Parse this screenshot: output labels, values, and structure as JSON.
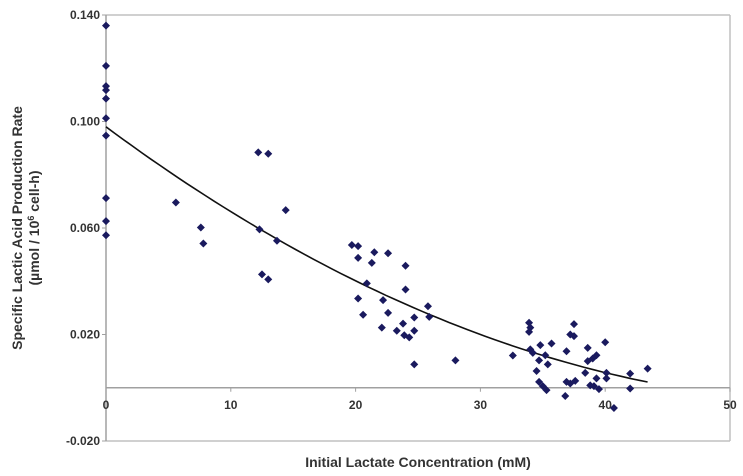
{
  "chart_data": {
    "type": "scatter",
    "title": "",
    "xlabel": "Initial Lactate Concentration (mM)",
    "ylabel_line1": "Specific Lactic Acid Production Rate",
    "ylabel_line2_pre": "(µmol / 10",
    "ylabel_line2_sup": "6",
    "ylabel_line2_post": " cell-h)",
    "xlim": [
      0,
      50
    ],
    "ylim": [
      -0.02,
      0.14
    ],
    "x_ticks": [
      0,
      10,
      20,
      30,
      40,
      50
    ],
    "x_tick_labels": [
      "0",
      "10",
      "20",
      "30",
      "40",
      "50"
    ],
    "y_ticks": [
      0.14,
      0.1,
      0.06,
      0.02,
      -0.02
    ],
    "y_tick_labels": [
      "0.140",
      "0.100",
      "0.060",
      "0.020",
      "-0.020"
    ],
    "grid": false,
    "marker_color": "#1a1a5e",
    "trendline": {
      "type": "polynomial",
      "coefficients": [
        0.098,
        -0.003476,
        2.92e-05
      ],
      "x_range": [
        0,
        43.4
      ],
      "color": "#111111"
    },
    "points": [
      [
        0,
        0.136
      ],
      [
        0,
        0.1209
      ],
      [
        0,
        0.1133
      ],
      [
        0,
        0.1118
      ],
      [
        0,
        0.1086
      ],
      [
        0,
        0.1012
      ],
      [
        0,
        0.0947
      ],
      [
        0,
        0.0712
      ],
      [
        0,
        0.0626
      ],
      [
        0,
        0.0573
      ],
      [
        5.6,
        0.0696
      ],
      [
        7.6,
        0.0602
      ],
      [
        7.8,
        0.0542
      ],
      [
        12.2,
        0.0884
      ],
      [
        13.0,
        0.0879
      ],
      [
        14.4,
        0.0667
      ],
      [
        12.3,
        0.0595
      ],
      [
        13.7,
        0.0552
      ],
      [
        12.5,
        0.0426
      ],
      [
        13.0,
        0.0407
      ],
      [
        19.7,
        0.0536
      ],
      [
        20.2,
        0.0532
      ],
      [
        20.2,
        0.0488
      ],
      [
        21.5,
        0.0509
      ],
      [
        22.6,
        0.0505
      ],
      [
        21.3,
        0.0469
      ],
      [
        24.0,
        0.0458
      ],
      [
        20.9,
        0.0392
      ],
      [
        24.0,
        0.0369
      ],
      [
        20.2,
        0.0335
      ],
      [
        22.2,
        0.0329
      ],
      [
        25.8,
        0.0306
      ],
      [
        20.6,
        0.0274
      ],
      [
        22.6,
        0.0281
      ],
      [
        24.7,
        0.0264
      ],
      [
        25.9,
        0.0266
      ],
      [
        23.8,
        0.0241
      ],
      [
        22.1,
        0.0226
      ],
      [
        23.3,
        0.0214
      ],
      [
        24.7,
        0.0214
      ],
      [
        23.9,
        0.0197
      ],
      [
        24.3,
        0.0189
      ],
      [
        24.7,
        0.0088
      ],
      [
        28.0,
        0.0103
      ],
      [
        32.6,
        0.0121
      ],
      [
        33.9,
        0.0244
      ],
      [
        34.0,
        0.0226
      ],
      [
        33.9,
        0.021
      ],
      [
        37.5,
        0.0239
      ],
      [
        37.2,
        0.02
      ],
      [
        37.5,
        0.0194
      ],
      [
        34.0,
        0.0144
      ],
      [
        34.8,
        0.016
      ],
      [
        34.2,
        0.0131
      ],
      [
        35.2,
        0.0122
      ],
      [
        34.7,
        0.0103
      ],
      [
        35.7,
        0.0166
      ],
      [
        35.4,
        0.0088
      ],
      [
        36.9,
        0.0137
      ],
      [
        38.6,
        0.015
      ],
      [
        39.3,
        0.0122
      ],
      [
        39.0,
        0.011
      ],
      [
        38.6,
        0.01
      ],
      [
        40.0,
        0.0171
      ],
      [
        34.5,
        0.0063
      ],
      [
        38.4,
        0.0056
      ],
      [
        34.7,
        0.0022
      ],
      [
        35.0,
        0.0006
      ],
      [
        35.3,
        -0.0009
      ],
      [
        36.9,
        0.0022
      ],
      [
        37.2,
        0.0016
      ],
      [
        37.6,
        0.0026
      ],
      [
        36.8,
        -0.0031
      ],
      [
        38.8,
        0.0009
      ],
      [
        39.1,
        0.0006
      ],
      [
        39.3,
        0.0035
      ],
      [
        39.5,
        -0.0005
      ],
      [
        40.1,
        0.0056
      ],
      [
        40.1,
        0.0035
      ],
      [
        42.0,
        0.0053
      ],
      [
        42.0,
        -0.0003
      ],
      [
        43.4,
        0.0072
      ],
      [
        40.7,
        -0.0076
      ]
    ]
  }
}
